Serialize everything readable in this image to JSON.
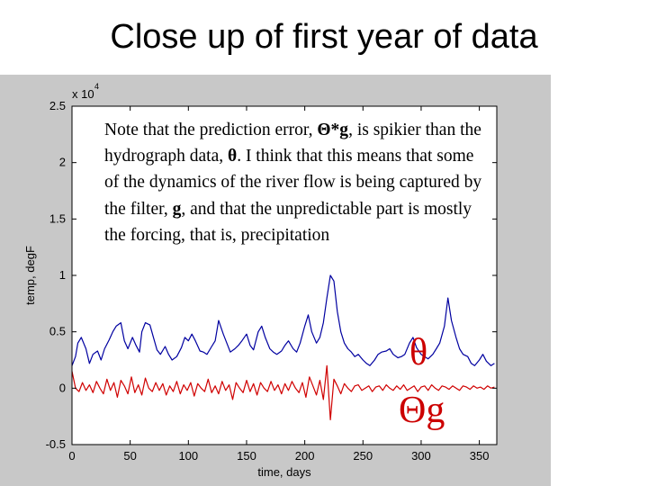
{
  "slide": {
    "title": "Close up of first year of data",
    "note": {
      "p1": "Note that the prediction error, ",
      "p2": "Θ*g",
      "p3": ", is spikier than the hydrograph data, ",
      "p4": "θ",
      "p5": ".  I think that this means that some of the dynamics of the river flow is being captured by the filter, ",
      "p6": "g",
      "p7": ", and that the unpredictable part is mostly the forcing, that is, precipitation"
    },
    "symbol_theta": "θ",
    "symbol_theta_g": "Θg",
    "colors": {
      "theta": "#0000a0",
      "error": "#d00000",
      "symbol": "#cc0000"
    }
  },
  "chart_data": {
    "type": "line",
    "title": "",
    "xlabel": "time, days",
    "ylabel": "temp, degF",
    "y_exponent": "x 10",
    "y_exponent_power": "4",
    "xlim": [
      0,
      365
    ],
    "ylim": [
      -0.5,
      2.5
    ],
    "xticks": [
      "0",
      "50",
      "100",
      "150",
      "200",
      "250",
      "300",
      "350"
    ],
    "yticks": [
      "-0.5",
      "0",
      "0.5",
      "1",
      "1.5",
      "2",
      "2.5"
    ],
    "series": [
      {
        "color": "#0000a0",
        "x": [
          0,
          3,
          5,
          8,
          12,
          15,
          18,
          22,
          25,
          28,
          32,
          35,
          38,
          42,
          45,
          48,
          52,
          55,
          58,
          60,
          63,
          67,
          70,
          73,
          76,
          80,
          83,
          86,
          90,
          94,
          97,
          100,
          103,
          106,
          110,
          113,
          116,
          120,
          123,
          126,
          130,
          133,
          136,
          140,
          143,
          146,
          150,
          153,
          156,
          160,
          163,
          166,
          170,
          173,
          176,
          180,
          183,
          186,
          190,
          193,
          196,
          200,
          203,
          206,
          210,
          213,
          216,
          219,
          222,
          225,
          228,
          231,
          234,
          237,
          240,
          243,
          246,
          250,
          253,
          256,
          260,
          263,
          266,
          270,
          273,
          276,
          280,
          283,
          286,
          290,
          293,
          296,
          300,
          303,
          306,
          310,
          313,
          316,
          320,
          323,
          326,
          330,
          333,
          336,
          340,
          343,
          346,
          350,
          353,
          356,
          360,
          363
        ],
        "values": [
          0.2,
          0.28,
          0.4,
          0.45,
          0.35,
          0.22,
          0.3,
          0.33,
          0.25,
          0.35,
          0.43,
          0.5,
          0.55,
          0.58,
          0.42,
          0.35,
          0.45,
          0.38,
          0.32,
          0.5,
          0.58,
          0.56,
          0.45,
          0.34,
          0.3,
          0.37,
          0.3,
          0.25,
          0.28,
          0.36,
          0.45,
          0.42,
          0.48,
          0.42,
          0.33,
          0.32,
          0.3,
          0.37,
          0.42,
          0.6,
          0.48,
          0.4,
          0.32,
          0.35,
          0.38,
          0.42,
          0.48,
          0.38,
          0.34,
          0.5,
          0.55,
          0.45,
          0.35,
          0.32,
          0.3,
          0.33,
          0.38,
          0.42,
          0.35,
          0.32,
          0.4,
          0.55,
          0.65,
          0.5,
          0.4,
          0.45,
          0.58,
          0.8,
          1.0,
          0.95,
          0.68,
          0.5,
          0.4,
          0.35,
          0.32,
          0.28,
          0.3,
          0.25,
          0.22,
          0.2,
          0.25,
          0.3,
          0.32,
          0.33,
          0.35,
          0.3,
          0.27,
          0.28,
          0.3,
          0.4,
          0.45,
          0.36,
          0.3,
          0.28,
          0.26,
          0.3,
          0.35,
          0.4,
          0.55,
          0.8,
          0.6,
          0.45,
          0.35,
          0.3,
          0.28,
          0.22,
          0.2,
          0.25,
          0.3,
          0.24,
          0.2,
          0.22
        ]
      },
      {
        "color": "#d00000",
        "x": [
          0,
          3,
          6,
          9,
          12,
          15,
          18,
          21,
          24,
          27,
          30,
          33,
          36,
          39,
          42,
          45,
          48,
          51,
          54,
          57,
          60,
          63,
          66,
          69,
          72,
          75,
          78,
          81,
          84,
          87,
          90,
          93,
          96,
          99,
          102,
          105,
          108,
          111,
          114,
          117,
          120,
          123,
          126,
          129,
          132,
          135,
          138,
          141,
          144,
          147,
          150,
          153,
          156,
          159,
          162,
          165,
          168,
          171,
          174,
          177,
          180,
          183,
          186,
          189,
          192,
          195,
          198,
          201,
          204,
          207,
          210,
          213,
          216,
          219,
          222,
          225,
          228,
          231,
          234,
          237,
          240,
          243,
          246,
          249,
          252,
          255,
          258,
          261,
          264,
          267,
          270,
          273,
          276,
          279,
          282,
          285,
          288,
          291,
          294,
          297,
          300,
          303,
          306,
          309,
          312,
          315,
          318,
          321,
          324,
          327,
          330,
          333,
          336,
          339,
          342,
          345,
          348,
          351,
          354,
          357,
          360,
          363
        ],
        "values": [
          0.15,
          0.0,
          -0.03,
          0.05,
          -0.02,
          0.03,
          -0.04,
          0.06,
          0.0,
          -0.05,
          0.08,
          -0.02,
          0.05,
          -0.08,
          0.07,
          0.02,
          -0.05,
          0.1,
          -0.04,
          0.03,
          -0.06,
          0.09,
          0.0,
          -0.03,
          0.05,
          -0.02,
          0.04,
          -0.06,
          0.02,
          -0.03,
          0.06,
          -0.05,
          0.03,
          -0.02,
          0.05,
          -0.07,
          0.04,
          0.0,
          -0.03,
          0.08,
          -0.04,
          0.02,
          -0.05,
          0.06,
          -0.02,
          0.03,
          -0.1,
          0.05,
          0.0,
          -0.04,
          0.07,
          -0.03,
          0.04,
          -0.06,
          0.05,
          0.0,
          -0.03,
          0.06,
          -0.02,
          0.03,
          -0.05,
          0.04,
          -0.02,
          0.06,
          0.0,
          -0.04,
          0.05,
          -0.08,
          0.1,
          0.02,
          -0.06,
          0.07,
          -0.1,
          0.2,
          -0.28,
          0.08,
          0.02,
          -0.05,
          0.04,
          0.0,
          -0.03,
          0.02,
          0.03,
          -0.02,
          0.0,
          0.02,
          -0.03,
          0.01,
          0.02,
          -0.02,
          0.03,
          0.0,
          -0.02,
          0.02,
          -0.01,
          0.03,
          -0.02,
          0.0,
          0.02,
          -0.03,
          0.01,
          0.02,
          -0.02,
          0.03,
          0.0,
          -0.02,
          0.02,
          0.01,
          -0.01,
          0.02,
          0.0,
          -0.02,
          0.02,
          0.01,
          -0.01,
          0.02,
          0.0,
          0.01,
          -0.01,
          0.02,
          0.0,
          0.01
        ]
      }
    ]
  }
}
